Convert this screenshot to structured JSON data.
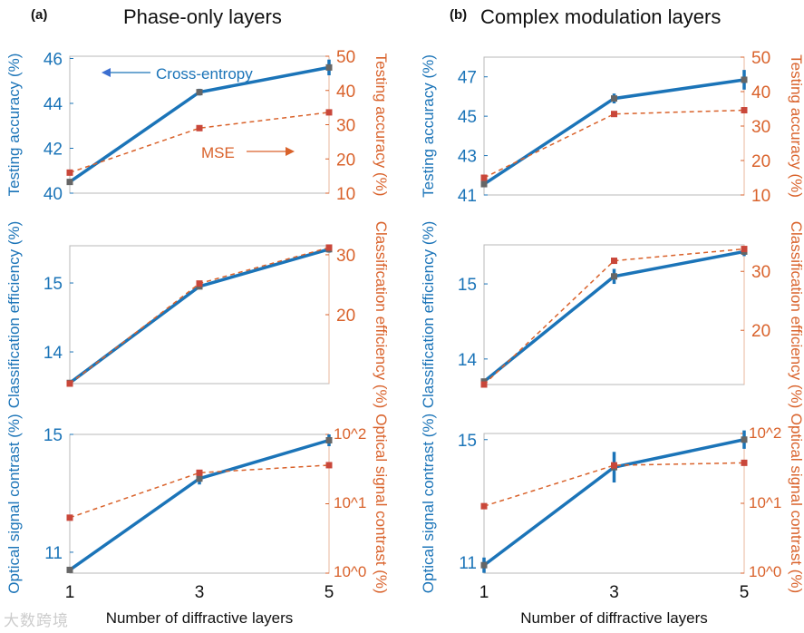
{
  "colors": {
    "primary": "#1b74b8",
    "secondary": "#d9622b",
    "marker": "#666666",
    "frame": "#b8b8b8"
  },
  "panels": [
    {
      "label": "(a)",
      "title": "Phase-only layers"
    },
    {
      "label": "(b)",
      "title": "Complex modulation layers"
    }
  ],
  "watermark": "大数跨境",
  "chart_data": [
    {
      "id": "a-testing",
      "type": "line",
      "x": [
        1,
        3,
        5
      ],
      "xlabel": "",
      "left": {
        "label": "Testing accuracy (%)",
        "range": [
          40,
          46.1
        ],
        "ticks": [
          40,
          42,
          44,
          46
        ],
        "scale": "linear"
      },
      "right": {
        "label": "Testing accuracy (%)",
        "range": [
          10,
          50
        ],
        "ticks": [
          10,
          20,
          30,
          40,
          50
        ],
        "scale": "linear"
      },
      "series": [
        {
          "name": "Cross-entropy",
          "axis": "left",
          "values": [
            40.5,
            44.5,
            45.6
          ],
          "errors": [
            0.1,
            0.15,
            0.35
          ]
        },
        {
          "name": "MSE",
          "axis": "right",
          "values": [
            16,
            29,
            33.6
          ]
        }
      ],
      "annotations": [
        {
          "text": "Cross-entropy",
          "arrow": "left"
        },
        {
          "text": "MSE",
          "arrow": "right"
        }
      ]
    },
    {
      "id": "a-efficiency",
      "type": "line",
      "x": [
        1,
        3,
        5
      ],
      "xlabel": "",
      "left": {
        "label": "Classification efficiency (%)",
        "range": [
          13.54,
          15.54
        ],
        "ticks": [
          14,
          15
        ],
        "scale": "linear"
      },
      "right": {
        "label": "Classification efficiency (%)",
        "range": [
          8.5,
          31.5
        ],
        "ticks": [
          20,
          30
        ],
        "scale": "linear"
      },
      "series": [
        {
          "name": "Cross-entropy",
          "axis": "left",
          "values": [
            13.55,
            14.95,
            15.49
          ],
          "errors": [
            0.01,
            0.03,
            0.05
          ]
        },
        {
          "name": "MSE",
          "axis": "right",
          "values": [
            8.5,
            25.2,
            31.2
          ]
        }
      ]
    },
    {
      "id": "a-contrast",
      "type": "line",
      "x": [
        1,
        3,
        5
      ],
      "xlabel": "Number of diffractive layers",
      "xticks": [
        "1",
        "3",
        "5"
      ],
      "left": {
        "label": "Optical signal contrast (%)",
        "range": [
          10.29,
          15.0
        ],
        "ticks": [
          11,
          15
        ],
        "scale": "linear"
      },
      "right": {
        "label": "Optical signal contrast (%)",
        "range": [
          1,
          100
        ],
        "ticks": [
          1,
          10,
          100
        ],
        "tick_labels": [
          "10^0",
          "10^1",
          "10^2"
        ],
        "scale": "log"
      },
      "series": [
        {
          "name": "Cross-entropy",
          "axis": "left",
          "values": [
            10.4,
            13.5,
            14.8
          ],
          "errors": [
            0.05,
            0.2,
            0.2
          ]
        },
        {
          "name": "MSE",
          "axis": "right",
          "values": [
            6.3,
            28,
            36
          ]
        }
      ]
    },
    {
      "id": "b-testing",
      "type": "line",
      "x": [
        1,
        3,
        5
      ],
      "xlabel": "",
      "left": {
        "label": "Testing accuracy (%)",
        "range": [
          41,
          48
        ],
        "ticks": [
          41,
          43,
          45,
          47
        ],
        "scale": "linear"
      },
      "right": {
        "label": "Testing accuracy (%)",
        "range": [
          10,
          50
        ],
        "ticks": [
          10,
          20,
          30,
          40,
          50
        ],
        "scale": "linear"
      },
      "series": [
        {
          "name": "Cross-entropy",
          "axis": "left",
          "values": [
            41.55,
            45.9,
            46.85
          ],
          "errors": [
            0.1,
            0.25,
            0.5
          ]
        },
        {
          "name": "MSE",
          "axis": "right",
          "values": [
            15,
            33.5,
            34.6
          ]
        }
      ]
    },
    {
      "id": "b-efficiency",
      "type": "line",
      "x": [
        1,
        3,
        5
      ],
      "xlabel": "",
      "left": {
        "label": "Classification efficiency (%)",
        "range": [
          13.66,
          15.52
        ],
        "ticks": [
          14,
          15
        ],
        "scale": "linear"
      },
      "right": {
        "label": "Classification efficiency (%)",
        "range": [
          10.8,
          34.5
        ],
        "ticks": [
          20,
          30
        ],
        "scale": "linear"
      },
      "series": [
        {
          "name": "Cross-entropy",
          "axis": "left",
          "values": [
            13.7,
            15.1,
            15.43
          ],
          "errors": [
            0.02,
            0.1,
            0.06
          ]
        },
        {
          "name": "MSE",
          "axis": "right",
          "values": [
            10.8,
            31.8,
            33.8
          ]
        }
      ]
    },
    {
      "id": "b-contrast",
      "type": "line",
      "x": [
        1,
        3,
        5
      ],
      "xlabel": "Number of diffractive layers",
      "xticks": [
        "1",
        "3",
        "5"
      ],
      "left": {
        "label": "Optical signal contrast (%)",
        "range": [
          10.64,
          15.2
        ],
        "ticks": [
          11,
          15
        ],
        "scale": "linear"
      },
      "right": {
        "label": "Optical signal contrast (%)",
        "range": [
          1,
          100
        ],
        "ticks": [
          1,
          10,
          100
        ],
        "tick_labels": [
          "10^0",
          "10^1",
          "10^2"
        ],
        "scale": "log"
      },
      "series": [
        {
          "name": "Cross-entropy",
          "axis": "left",
          "values": [
            10.9,
            14.1,
            15.0
          ],
          "errors": [
            0.25,
            0.5,
            0.3
          ]
        },
        {
          "name": "MSE",
          "axis": "right",
          "values": [
            9.1,
            35,
            38
          ]
        }
      ]
    }
  ]
}
